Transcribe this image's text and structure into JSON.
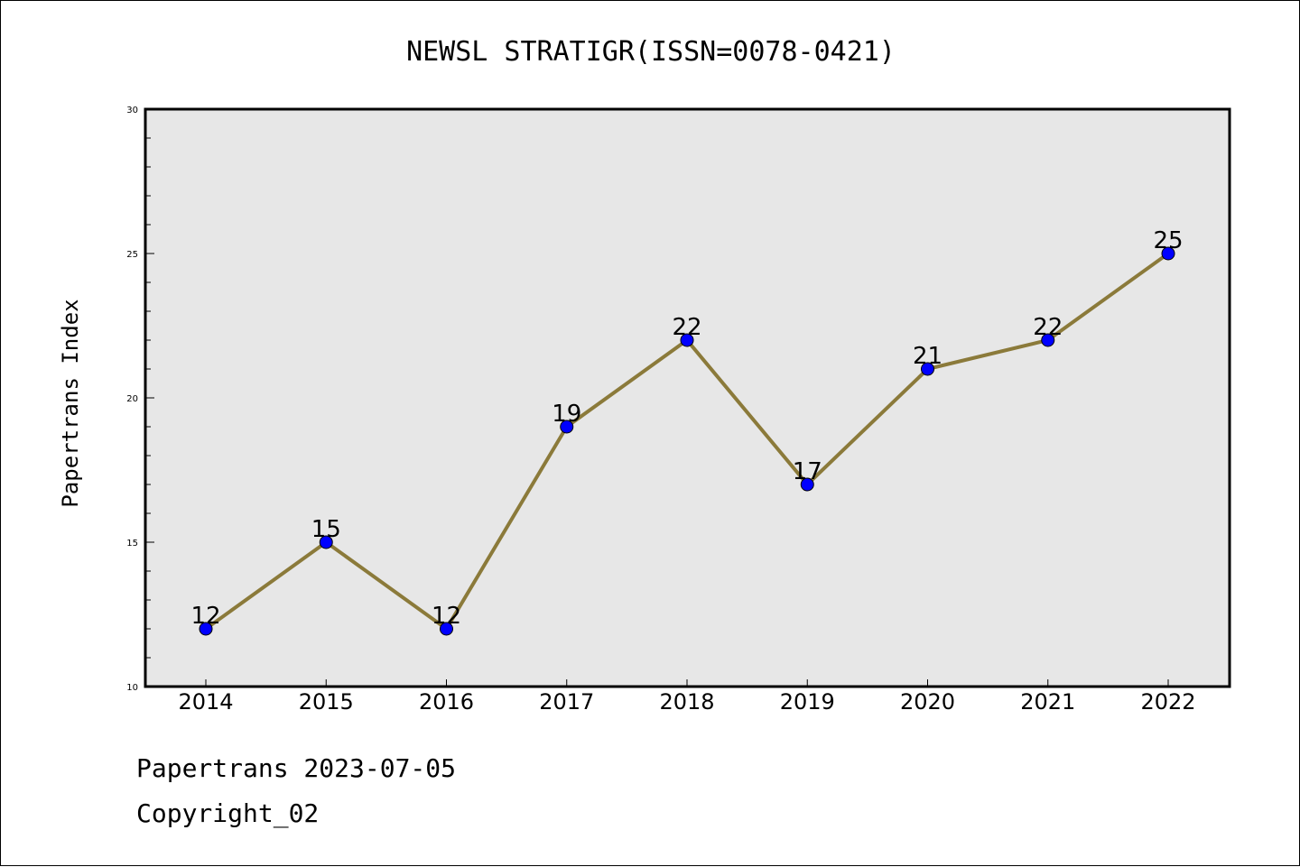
{
  "chart_data": {
    "type": "line",
    "title": "NEWSL STRATIGR(ISSN=0078-0421)",
    "xlabel": "",
    "ylabel": "Papertrans Index",
    "categories": [
      "2014",
      "2015",
      "2016",
      "2017",
      "2018",
      "2019",
      "2020",
      "2021",
      "2022"
    ],
    "series": [
      {
        "values": [
          12,
          15,
          12,
          19,
          22,
          17,
          21,
          22,
          25
        ]
      }
    ],
    "data_labels": [
      "12",
      "15",
      "12",
      "19",
      "22",
      "17",
      "21",
      "22",
      "25"
    ],
    "ylim": [
      10,
      30
    ],
    "yticks": [
      "10",
      "15",
      "20",
      "25",
      "30"
    ],
    "grid": false,
    "colors": {
      "line": "#8b7a3a",
      "marker": "#0000ff",
      "plot_background": "#e7e7e7"
    }
  },
  "footer": {
    "date_line": "Papertrans 2023-07-05",
    "copyright": "Copyright_02"
  }
}
